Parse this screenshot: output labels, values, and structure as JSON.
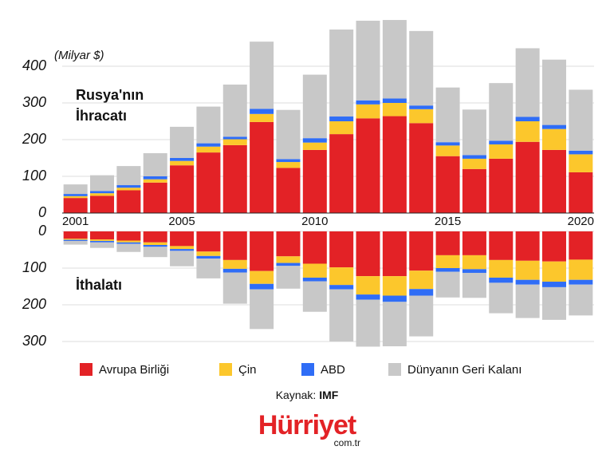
{
  "chart_data": [
    {
      "type": "stacked_bar",
      "unit": "(Milyar $)",
      "title": "Rusya'nın",
      "subtitle": "İhracatı",
      "categories": [
        "2001",
        null,
        null,
        null,
        "2005",
        null,
        null,
        null,
        null,
        "2010",
        null,
        null,
        null,
        null,
        "2015",
        null,
        null,
        null,
        null,
        "2020"
      ],
      "ylim": [
        0,
        540
      ],
      "yticks": [
        0,
        100,
        200,
        300,
        400
      ],
      "grid": true,
      "series": [
        {
          "name": "Avrupa Birliği",
          "color": "#e32226",
          "values": [
            41,
            47,
            62,
            83,
            130,
            165,
            185,
            248,
            123,
            172,
            215,
            258,
            264,
            245,
            155,
            120,
            148,
            194,
            172,
            111
          ]
        },
        {
          "name": "Çin",
          "color": "#fcc72c",
          "values": [
            5,
            7,
            7,
            9,
            12,
            16,
            16,
            22,
            16,
            20,
            35,
            38,
            36,
            38,
            29,
            28,
            39,
            56,
            57,
            49
          ]
        },
        {
          "name": "ABD",
          "color": "#2f6df6",
          "values": [
            6,
            6,
            7,
            8,
            8,
            9,
            7,
            14,
            8,
            12,
            13,
            11,
            12,
            10,
            9,
            10,
            10,
            12,
            11,
            10
          ]
        },
        {
          "name": "Dünyanın Geri Kalanı",
          "color": "#c8c8c8",
          "values": [
            26,
            43,
            52,
            63,
            85,
            100,
            142,
            183,
            134,
            173,
            237,
            217,
            214,
            203,
            149,
            124,
            157,
            187,
            178,
            166
          ]
        }
      ]
    },
    {
      "type": "stacked_bar",
      "title": "İthalatı",
      "inverted": true,
      "ylim": [
        0,
        320
      ],
      "yticks": [
        0,
        100,
        200,
        300
      ],
      "grid": true,
      "series": [
        {
          "color": "#e32226",
          "values": [
            20,
            22,
            25,
            30,
            40,
            55,
            78,
            108,
            68,
            88,
            98,
            122,
            122,
            107,
            65,
            65,
            78,
            80,
            82,
            77
          ]
        },
        {
          "color": "#fcc72c",
          "values": [
            3,
            4,
            5,
            7,
            8,
            12,
            24,
            35,
            18,
            38,
            48,
            50,
            53,
            50,
            35,
            38,
            48,
            52,
            55,
            55
          ]
        },
        {
          "color": "#2f6df6",
          "values": [
            3,
            4,
            4,
            5,
            5,
            7,
            10,
            15,
            8,
            10,
            12,
            14,
            17,
            18,
            10,
            10,
            14,
            13,
            15,
            13
          ]
        },
        {
          "color": "#c8c8c8",
          "values": [
            10,
            15,
            22,
            28,
            42,
            54,
            85,
            108,
            62,
            83,
            142,
            128,
            121,
            111,
            70,
            68,
            83,
            91,
            89,
            84
          ]
        }
      ]
    }
  ],
  "source_label": "Kaynak:",
  "source": "IMF",
  "logo": "Hürriyet",
  "logo_domain": "com.tr"
}
